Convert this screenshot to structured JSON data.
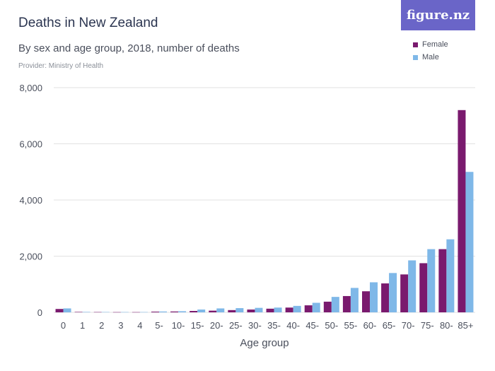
{
  "header": {
    "title": "Deaths   in New Zealand",
    "subtitle": "By sex and age group, 2018, number of deaths",
    "provider": "Provider: Ministry of Health",
    "brand": "figure.nz"
  },
  "colors": {
    "female": "#7a1a6e",
    "male": "#7fb8e8",
    "brand": "#6a65c8",
    "grid": "#e2e2e2"
  },
  "chart_data": {
    "type": "bar",
    "title": "Deaths   in New Zealand",
    "subtitle": "By sex and age group, 2018, number of deaths",
    "xlabel": "Age group",
    "ylabel": "",
    "ylim": [
      0,
      8000
    ],
    "yticks": [
      0,
      2000,
      4000,
      6000,
      8000
    ],
    "ytick_labels": [
      "0",
      "2,000",
      "4,000",
      "6,000",
      "8,000"
    ],
    "grid": true,
    "legend": "top-right",
    "categories": [
      "0",
      "1",
      "2",
      "3",
      "4",
      "5-",
      "10-",
      "15-",
      "20-",
      "25-",
      "30-",
      "35-",
      "40-",
      "45-",
      "50-",
      "55-",
      "60-",
      "65-",
      "70-",
      "75-",
      "80-",
      "85+"
    ],
    "series": [
      {
        "name": "Female",
        "values": [
          120,
          15,
          10,
          8,
          8,
          25,
          30,
          50,
          60,
          80,
          100,
          130,
          170,
          250,
          380,
          580,
          750,
          1030,
          1350,
          1750,
          2250,
          7200
        ]
      },
      {
        "name": "Male",
        "values": [
          140,
          15,
          12,
          10,
          10,
          30,
          40,
          100,
          140,
          150,
          160,
          170,
          230,
          340,
          550,
          870,
          1070,
          1400,
          1850,
          2250,
          2600,
          5000
        ]
      }
    ]
  }
}
